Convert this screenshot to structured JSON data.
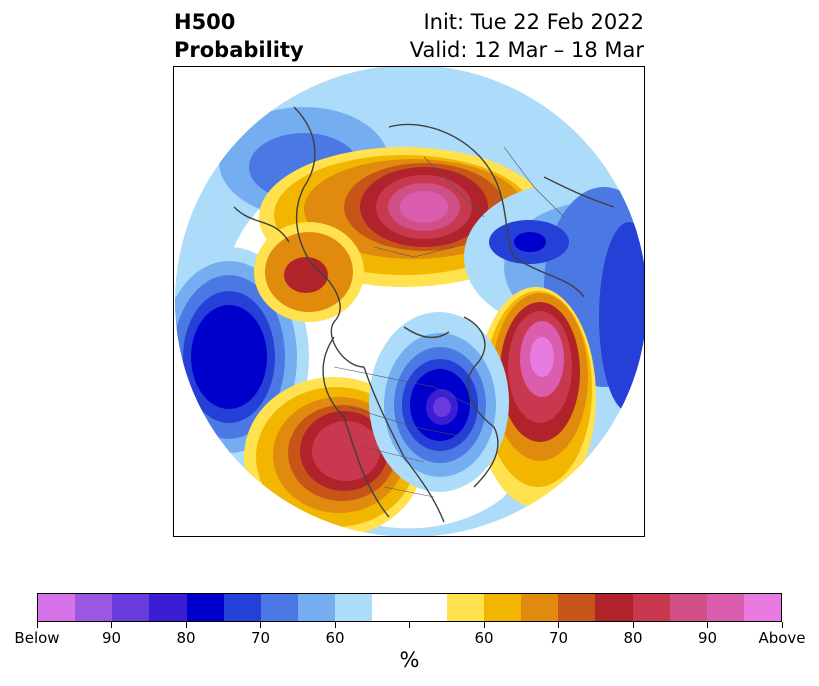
{
  "title": {
    "left_line1": "H500",
    "left_line2": "Probability",
    "right_line1": "Init: Tue 22 Feb 2022",
    "right_line2": "Valid: 12 Mar – 18 Mar"
  },
  "map": {
    "projection": "north-polar-stereographic",
    "anomalies": [
      {
        "region": "north-central-pacific",
        "sign": "below",
        "peak_percent": 80
      },
      {
        "region": "eastern-canada-hudson-bay",
        "sign": "below",
        "peak_percent": 90
      },
      {
        "region": "northern-europe-barents-sea",
        "sign": "below",
        "peak_percent": 80
      },
      {
        "region": "western-north-america",
        "sign": "above",
        "peak_percent": 80
      },
      {
        "region": "north-atlantic",
        "sign": "above",
        "peak_percent": 90
      },
      {
        "region": "siberia-arctic",
        "sign": "above",
        "peak_percent": 90
      },
      {
        "region": "western-pacific-japan",
        "sign": "above",
        "peak_percent": 70
      }
    ]
  },
  "colorbar": {
    "colors": [
      "#d673e8",
      "#9a57e0",
      "#6a3bdc",
      "#3b1ed4",
      "#0000cd",
      "#2540d6",
      "#4c78e4",
      "#74aef0",
      "#acdcfa",
      "#ffffff",
      "#ffffff",
      "#ffe24d",
      "#f2b600",
      "#e08a0e",
      "#c85518",
      "#b0232a",
      "#c8384f",
      "#cf4f86",
      "#db5dae",
      "#e87ae0"
    ],
    "tick_labels": [
      "Below",
      "90",
      "80",
      "70",
      "60",
      "",
      "60",
      "70",
      "80",
      "90",
      "Above"
    ],
    "unit": "%"
  }
}
